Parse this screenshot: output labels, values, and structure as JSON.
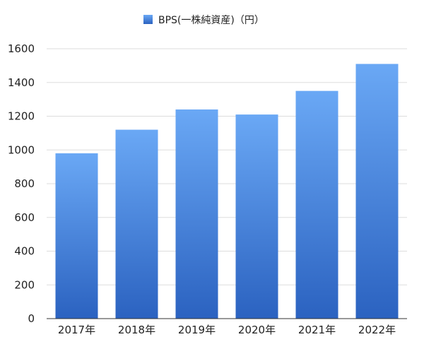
{
  "chart_data": {
    "type": "bar",
    "legend_position": "top-center",
    "grid": true,
    "series": [
      {
        "name": "BPS(一株純資産)（円）",
        "color": "#3f7fdc",
        "values": [
          980,
          1120,
          1240,
          1210,
          1350,
          1510
        ]
      }
    ],
    "categories": [
      "2017年",
      "2018年",
      "2019年",
      "2020年",
      "2021年",
      "2022年"
    ],
    "ylim": [
      0,
      1600
    ],
    "yticks": [
      0,
      200,
      400,
      600,
      800,
      1000,
      1200,
      1400,
      1600
    ]
  }
}
